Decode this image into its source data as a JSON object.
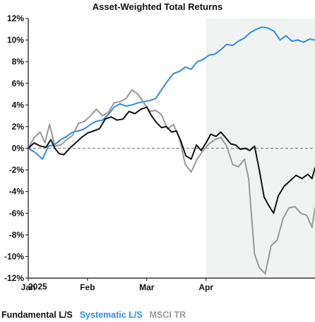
{
  "chart_data": {
    "type": "line",
    "title": "Asset-Weighted Total Returns",
    "year_label": "2025",
    "xlabel": "",
    "ylabel": "",
    "x_ticks": [
      "Jan",
      "Feb",
      "Mar",
      "Apr"
    ],
    "x_range": [
      0,
      4.84
    ],
    "ylim": [
      -12,
      12
    ],
    "y_ticks": [
      12,
      10,
      8,
      6,
      4,
      2,
      0,
      -2,
      -4,
      -6,
      -8,
      -10,
      -12
    ],
    "y_tick_labels": [
      "12%",
      "10%",
      "8%",
      "6%",
      "4%",
      "2%",
      "0%",
      "-2%",
      "-4%",
      "-6%",
      "-8%",
      "-10%",
      "-12%"
    ],
    "zero_line": "dashed",
    "shaded_region": {
      "x_start": 3.0,
      "x_end": 4.84,
      "color": "#f0f3f1"
    },
    "legend_position": "bottom",
    "series": [
      {
        "name": "Fundamental L/S",
        "color": "#111111",
        "points": [
          [
            0.0,
            0.0
          ],
          [
            0.1,
            0.5
          ],
          [
            0.2,
            0.2
          ],
          [
            0.3,
            0.1
          ],
          [
            0.38,
            0.8
          ],
          [
            0.45,
            0.0
          ],
          [
            0.52,
            -0.5
          ],
          [
            0.6,
            -0.6
          ],
          [
            0.7,
            0.0
          ],
          [
            0.8,
            0.5
          ],
          [
            0.9,
            1.0
          ],
          [
            1.0,
            1.4
          ],
          [
            1.1,
            1.6
          ],
          [
            1.2,
            1.8
          ],
          [
            1.3,
            2.7
          ],
          [
            1.4,
            2.9
          ],
          [
            1.5,
            2.6
          ],
          [
            1.6,
            2.7
          ],
          [
            1.7,
            3.4
          ],
          [
            1.8,
            3.2
          ],
          [
            1.9,
            3.6
          ],
          [
            2.0,
            3.8
          ],
          [
            2.08,
            3.0
          ],
          [
            2.16,
            2.4
          ],
          [
            2.25,
            1.9
          ],
          [
            2.33,
            2.0
          ],
          [
            2.42,
            1.5
          ],
          [
            2.5,
            1.6
          ],
          [
            2.58,
            0.6
          ],
          [
            2.66,
            -0.7
          ],
          [
            2.75,
            -1.0
          ],
          [
            2.84,
            0.3
          ],
          [
            2.92,
            -0.2
          ],
          [
            3.0,
            0.5
          ],
          [
            3.08,
            1.3
          ],
          [
            3.17,
            1.1
          ],
          [
            3.25,
            1.5
          ],
          [
            3.33,
            1.0
          ],
          [
            3.42,
            0.4
          ],
          [
            3.5,
            0.3
          ],
          [
            3.58,
            -0.1
          ],
          [
            3.66,
            0.0
          ],
          [
            3.74,
            -0.2
          ],
          [
            3.82,
            0.2
          ],
          [
            3.9,
            -2.0
          ],
          [
            3.98,
            -4.5
          ],
          [
            4.06,
            -5.3
          ],
          [
            4.14,
            -6.0
          ],
          [
            4.22,
            -4.4
          ],
          [
            4.32,
            -3.5
          ],
          [
            4.42,
            -3.0
          ],
          [
            4.52,
            -2.5
          ],
          [
            4.62,
            -2.8
          ],
          [
            4.72,
            -2.4
          ],
          [
            4.79,
            -2.8
          ],
          [
            4.84,
            -1.8
          ]
        ]
      },
      {
        "name": "Systematic L/S",
        "color": "#2f8de4",
        "points": [
          [
            0.0,
            0.0
          ],
          [
            0.12,
            -0.4
          ],
          [
            0.24,
            -1.0
          ],
          [
            0.34,
            0.2
          ],
          [
            0.44,
            0.3
          ],
          [
            0.55,
            0.8
          ],
          [
            0.65,
            1.1
          ],
          [
            0.75,
            1.5
          ],
          [
            0.85,
            1.6
          ],
          [
            0.95,
            1.8
          ],
          [
            1.05,
            2.2
          ],
          [
            1.15,
            2.5
          ],
          [
            1.25,
            2.6
          ],
          [
            1.35,
            3.1
          ],
          [
            1.45,
            3.8
          ],
          [
            1.55,
            4.1
          ],
          [
            1.65,
            3.9
          ],
          [
            1.75,
            4.0
          ],
          [
            1.85,
            4.2
          ],
          [
            1.95,
            4.3
          ],
          [
            2.05,
            4.4
          ],
          [
            2.15,
            4.6
          ],
          [
            2.25,
            5.4
          ],
          [
            2.35,
            6.2
          ],
          [
            2.45,
            6.9
          ],
          [
            2.55,
            7.1
          ],
          [
            2.65,
            7.5
          ],
          [
            2.75,
            7.3
          ],
          [
            2.85,
            8.0
          ],
          [
            2.95,
            8.2
          ],
          [
            3.05,
            8.6
          ],
          [
            3.15,
            8.7
          ],
          [
            3.25,
            9.1
          ],
          [
            3.35,
            9.6
          ],
          [
            3.45,
            9.5
          ],
          [
            3.55,
            9.9
          ],
          [
            3.65,
            10.2
          ],
          [
            3.75,
            10.7
          ],
          [
            3.85,
            11.0
          ],
          [
            3.95,
            11.2
          ],
          [
            4.05,
            11.1
          ],
          [
            4.15,
            10.8
          ],
          [
            4.25,
            10.0
          ],
          [
            4.35,
            10.4
          ],
          [
            4.45,
            9.9
          ],
          [
            4.55,
            10.0
          ],
          [
            4.65,
            9.8
          ],
          [
            4.75,
            10.1
          ],
          [
            4.84,
            10.0
          ]
        ]
      },
      {
        "name": "MSCI TR",
        "color": "#999999",
        "points": [
          [
            0.0,
            0.0
          ],
          [
            0.1,
            1.0
          ],
          [
            0.2,
            1.5
          ],
          [
            0.28,
            0.5
          ],
          [
            0.36,
            2.2
          ],
          [
            0.45,
            0.2
          ],
          [
            0.55,
            0.3
          ],
          [
            0.65,
            0.8
          ],
          [
            0.75,
            1.2
          ],
          [
            0.85,
            2.3
          ],
          [
            0.95,
            2.5
          ],
          [
            1.05,
            3.0
          ],
          [
            1.15,
            3.6
          ],
          [
            1.25,
            3.0
          ],
          [
            1.35,
            3.3
          ],
          [
            1.45,
            4.2
          ],
          [
            1.55,
            4.3
          ],
          [
            1.65,
            4.6
          ],
          [
            1.75,
            5.4
          ],
          [
            1.85,
            5.0
          ],
          [
            1.95,
            4.2
          ],
          [
            2.05,
            3.4
          ],
          [
            2.15,
            3.5
          ],
          [
            2.25,
            3.1
          ],
          [
            2.35,
            1.8
          ],
          [
            2.45,
            2.2
          ],
          [
            2.55,
            1.0
          ],
          [
            2.65,
            -1.5
          ],
          [
            2.75,
            -2.2
          ],
          [
            2.85,
            -1.0
          ],
          [
            2.95,
            -0.2
          ],
          [
            3.05,
            0.4
          ],
          [
            3.15,
            0.8
          ],
          [
            3.25,
            1.0
          ],
          [
            3.35,
            0.2
          ],
          [
            3.45,
            -1.5
          ],
          [
            3.55,
            -1.7
          ],
          [
            3.65,
            -1.0
          ],
          [
            3.72,
            -2.8
          ],
          [
            3.82,
            -9.8
          ],
          [
            3.9,
            -11.0
          ],
          [
            4.0,
            -11.6
          ],
          [
            4.1,
            -9.0
          ],
          [
            4.2,
            -8.5
          ],
          [
            4.3,
            -6.5
          ],
          [
            4.4,
            -5.5
          ],
          [
            4.5,
            -5.4
          ],
          [
            4.6,
            -6.0
          ],
          [
            4.7,
            -6.2
          ],
          [
            4.79,
            -7.3
          ],
          [
            4.84,
            -5.5
          ]
        ]
      }
    ]
  }
}
